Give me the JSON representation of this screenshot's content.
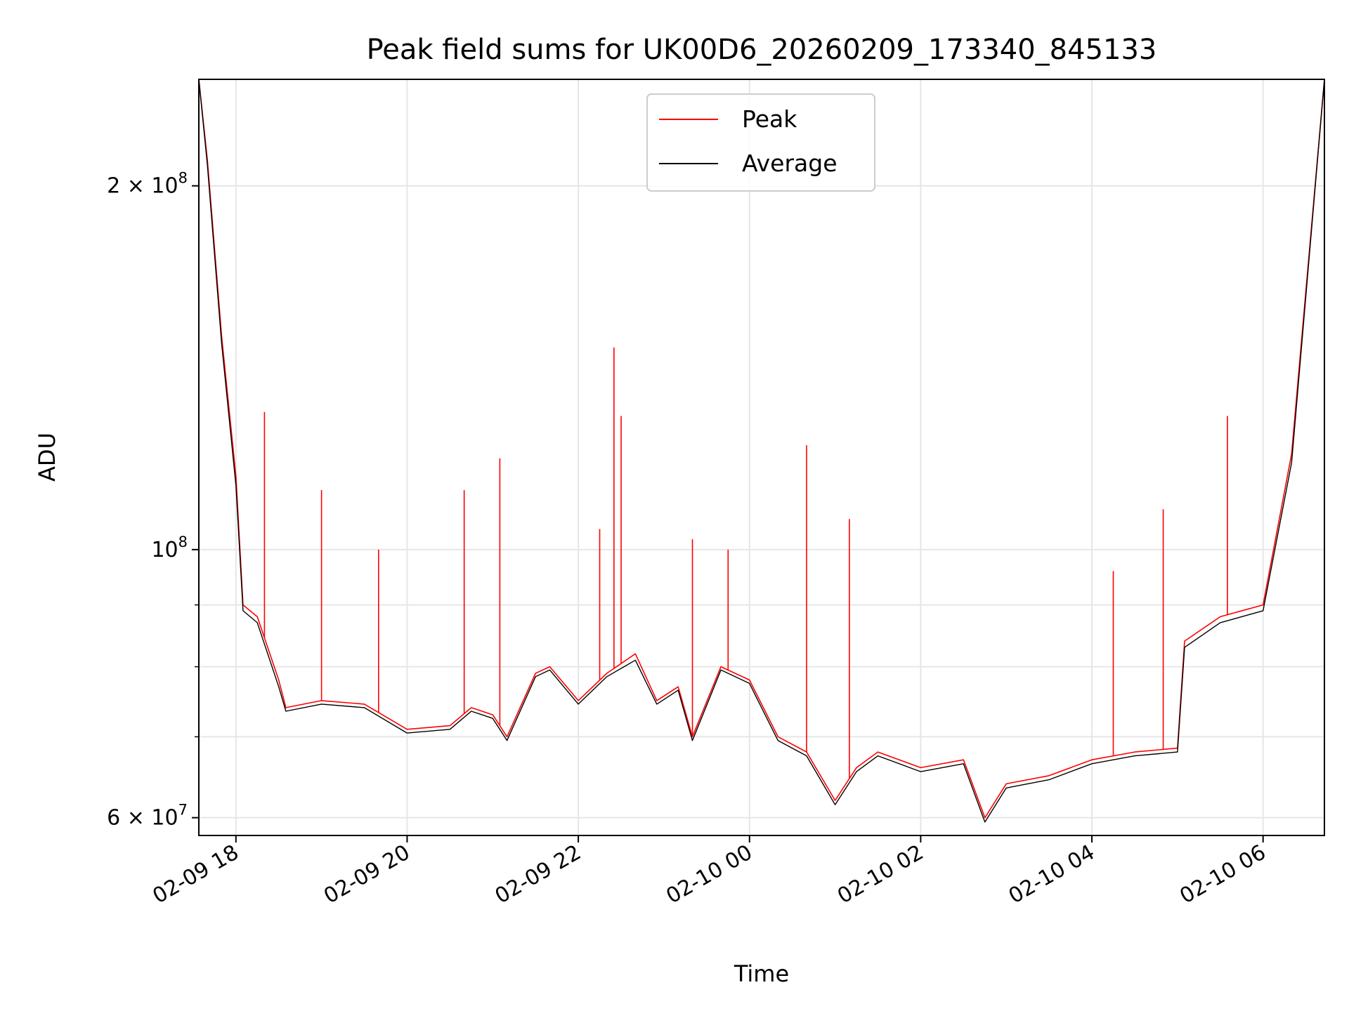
{
  "chart_data": {
    "type": "line",
    "title": "Peak field sums for UK00D6_20260209_173340_845133",
    "xlabel": "Time",
    "ylabel": "ADU",
    "x_range": [
      "2026-02-09 17:34",
      "2026-02-10 06:43"
    ],
    "ylim": [
      58000000,
      245000000
    ],
    "y_scale": "log",
    "grid": true,
    "legend_position": "upper center",
    "x_tick_labels": [
      "02-09 18",
      "02-09 20",
      "02-09 22",
      "02-10 00",
      "02-10 02",
      "02-10 04",
      "02-10 06"
    ],
    "y_tick_labels": [
      "6 × 10^7",
      "10^8",
      "2 × 10^8"
    ],
    "series": [
      {
        "name": "Peak",
        "color": "#ff0000",
        "x": [
          "2026-02-09 17:34",
          "2026-02-09 17:40",
          "2026-02-09 17:50",
          "2026-02-09 18:00",
          "2026-02-09 18:05",
          "2026-02-09 18:15",
          "2026-02-09 18:30",
          "2026-02-09 18:35",
          "2026-02-09 19:00",
          "2026-02-09 19:30",
          "2026-02-09 20:00",
          "2026-02-09 20:30",
          "2026-02-09 20:45",
          "2026-02-09 21:00",
          "2026-02-09 21:10",
          "2026-02-09 21:30",
          "2026-02-09 21:40",
          "2026-02-09 22:00",
          "2026-02-09 22:20",
          "2026-02-09 22:40",
          "2026-02-09 22:55",
          "2026-02-09 23:10",
          "2026-02-09 23:20",
          "2026-02-09 23:40",
          "2026-02-10 00:00",
          "2026-02-10 00:20",
          "2026-02-10 00:40",
          "2026-02-10 01:00",
          "2026-02-10 01:15",
          "2026-02-10 01:30",
          "2026-02-10 02:00",
          "2026-02-10 02:30",
          "2026-02-10 02:45",
          "2026-02-10 03:00",
          "2026-02-10 03:30",
          "2026-02-10 04:00",
          "2026-02-10 04:30",
          "2026-02-10 05:00",
          "2026-02-10 05:05",
          "2026-02-10 05:30",
          "2026-02-10 06:00",
          "2026-02-10 06:20",
          "2026-02-10 06:43"
        ],
        "y": [
          245000000,
          210000000,
          150000000,
          115000000,
          90000000,
          88000000,
          78000000,
          74000000,
          75000000,
          74500000,
          71000000,
          71500000,
          74000000,
          73000000,
          70000000,
          79000000,
          80000000,
          75000000,
          79000000,
          82000000,
          75000000,
          77000000,
          70000000,
          80000000,
          78000000,
          70000000,
          68000000,
          62000000,
          66000000,
          68000000,
          66000000,
          67000000,
          60000000,
          64000000,
          65000000,
          67000000,
          68000000,
          68500000,
          84000000,
          88000000,
          90000000,
          120000000,
          245000000
        ],
        "spikes": [
          {
            "x": "2026-02-09 18:20",
            "y": 130000000
          },
          {
            "x": "2026-02-09 19:00",
            "y": 112000000
          },
          {
            "x": "2026-02-09 19:40",
            "y": 100000000
          },
          {
            "x": "2026-02-09 20:40",
            "y": 112000000
          },
          {
            "x": "2026-02-09 21:05",
            "y": 119000000
          },
          {
            "x": "2026-02-09 22:15",
            "y": 104000000
          },
          {
            "x": "2026-02-09 22:25",
            "y": 147000000
          },
          {
            "x": "2026-02-09 22:30",
            "y": 129000000
          },
          {
            "x": "2026-02-09 23:20",
            "y": 102000000
          },
          {
            "x": "2026-02-09 23:45",
            "y": 100000000
          },
          {
            "x": "2026-02-10 00:40",
            "y": 122000000
          },
          {
            "x": "2026-02-10 01:10",
            "y": 106000000
          },
          {
            "x": "2026-02-10 04:15",
            "y": 96000000
          },
          {
            "x": "2026-02-10 04:50",
            "y": 108000000
          },
          {
            "x": "2026-02-10 05:35",
            "y": 129000000
          }
        ]
      },
      {
        "name": "Average",
        "color": "#000000",
        "x": [
          "2026-02-09 17:34",
          "2026-02-09 17:40",
          "2026-02-09 17:50",
          "2026-02-09 18:00",
          "2026-02-09 18:05",
          "2026-02-09 18:15",
          "2026-02-09 18:30",
          "2026-02-09 18:35",
          "2026-02-09 19:00",
          "2026-02-09 19:30",
          "2026-02-09 20:00",
          "2026-02-09 20:30",
          "2026-02-09 20:45",
          "2026-02-09 21:00",
          "2026-02-09 21:10",
          "2026-02-09 21:30",
          "2026-02-09 21:40",
          "2026-02-09 22:00",
          "2026-02-09 22:20",
          "2026-02-09 22:40",
          "2026-02-09 22:55",
          "2026-02-09 23:10",
          "2026-02-09 23:20",
          "2026-02-09 23:40",
          "2026-02-10 00:00",
          "2026-02-10 00:20",
          "2026-02-10 00:40",
          "2026-02-10 01:00",
          "2026-02-10 01:15",
          "2026-02-10 01:30",
          "2026-02-10 02:00",
          "2026-02-10 02:30",
          "2026-02-10 02:45",
          "2026-02-10 03:00",
          "2026-02-10 03:30",
          "2026-02-10 04:00",
          "2026-02-10 04:30",
          "2026-02-10 05:00",
          "2026-02-10 05:05",
          "2026-02-10 05:30",
          "2026-02-10 06:00",
          "2026-02-10 06:20",
          "2026-02-10 06:43"
        ],
        "y": [
          245000000,
          208000000,
          148000000,
          113000000,
          89000000,
          87000000,
          77000000,
          73500000,
          74500000,
          74000000,
          70500000,
          71000000,
          73500000,
          72500000,
          69500000,
          78500000,
          79500000,
          74500000,
          78500000,
          81000000,
          74500000,
          76500000,
          69500000,
          79500000,
          77500000,
          69500000,
          67500000,
          61500000,
          65500000,
          67500000,
          65500000,
          66500000,
          59500000,
          63500000,
          64500000,
          66500000,
          67500000,
          68000000,
          83000000,
          87000000,
          89000000,
          118000000,
          245000000
        ]
      }
    ]
  }
}
